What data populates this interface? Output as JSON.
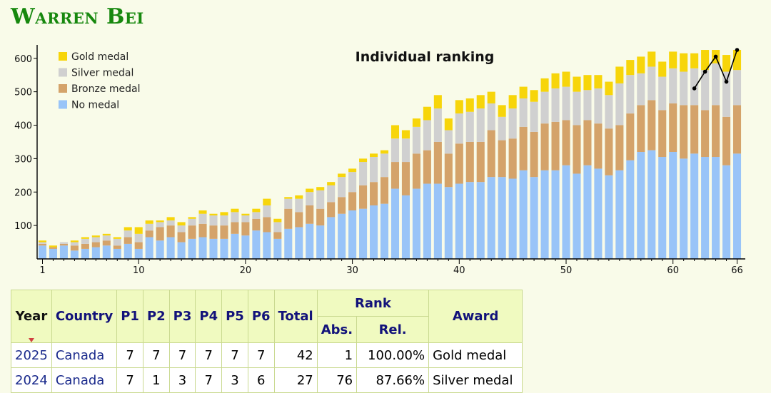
{
  "page": {
    "title": "Warren Bei"
  },
  "chart_data": {
    "type": "bar",
    "title": "Individual ranking",
    "stacked": true,
    "x_ticks": [
      1,
      10,
      20,
      30,
      40,
      50,
      60,
      66
    ],
    "y_ticks": [
      100,
      200,
      300,
      400,
      500,
      600
    ],
    "ylim": [
      0,
      640
    ],
    "xlim": [
      0.5,
      66.5
    ],
    "legend_position": "top-left",
    "grid": false,
    "categories": [
      1,
      2,
      3,
      4,
      5,
      6,
      7,
      8,
      9,
      10,
      11,
      12,
      13,
      14,
      15,
      16,
      17,
      18,
      19,
      20,
      21,
      22,
      23,
      24,
      25,
      26,
      27,
      28,
      29,
      30,
      31,
      32,
      33,
      34,
      35,
      36,
      37,
      38,
      39,
      40,
      41,
      42,
      43,
      44,
      45,
      46,
      47,
      48,
      49,
      50,
      51,
      52,
      53,
      54,
      55,
      56,
      57,
      58,
      59,
      60,
      61,
      62,
      63,
      64,
      65,
      66
    ],
    "series": [
      {
        "name": "No medal",
        "color": "#99c4f8",
        "values": [
          40,
          30,
          40,
          25,
          30,
          35,
          40,
          30,
          45,
          30,
          65,
          55,
          65,
          50,
          60,
          65,
          60,
          60,
          75,
          70,
          85,
          80,
          60,
          90,
          95,
          105,
          100,
          125,
          135,
          145,
          150,
          160,
          165,
          210,
          190,
          210,
          225,
          225,
          215,
          225,
          230,
          230,
          245,
          245,
          240,
          265,
          245,
          265,
          265,
          280,
          255,
          280,
          270,
          250,
          265,
          295,
          320,
          325,
          305,
          320,
          300,
          315,
          305,
          305,
          280,
          315
        ]
      },
      {
        "name": "Bronze medal",
        "color": "#d4a36a",
        "values": [
          5,
          5,
          5,
          15,
          15,
          15,
          15,
          10,
          20,
          20,
          20,
          40,
          35,
          30,
          40,
          40,
          40,
          40,
          35,
          40,
          35,
          45,
          20,
          60,
          45,
          55,
          50,
          45,
          50,
          55,
          70,
          70,
          80,
          80,
          100,
          105,
          100,
          125,
          100,
          120,
          120,
          120,
          140,
          110,
          120,
          130,
          135,
          140,
          145,
          135,
          145,
          135,
          135,
          140,
          135,
          140,
          140,
          150,
          140,
          145,
          160,
          145,
          140,
          155,
          145,
          145
        ]
      },
      {
        "name": "Silver medal",
        "color": "#d0d0d0",
        "values": [
          5,
          0,
          5,
          10,
          15,
          15,
          15,
          20,
          20,
          25,
          20,
          15,
          15,
          20,
          20,
          30,
          30,
          30,
          30,
          20,
          20,
          35,
          30,
          30,
          40,
          40,
          55,
          50,
          60,
          60,
          70,
          75,
          70,
          70,
          70,
          80,
          90,
          100,
          70,
          90,
          90,
          100,
          80,
          70,
          90,
          85,
          90,
          95,
          100,
          100,
          100,
          90,
          105,
          100,
          125,
          115,
          95,
          100,
          100,
          105,
          100,
          110,
          120,
          125,
          135,
          105
        ]
      },
      {
        "name": "Gold medal",
        "color": "#f7d50a",
        "values": [
          5,
          5,
          0,
          5,
          5,
          5,
          5,
          5,
          10,
          20,
          10,
          5,
          10,
          10,
          5,
          10,
          5,
          10,
          10,
          5,
          10,
          20,
          10,
          5,
          10,
          10,
          10,
          10,
          10,
          10,
          10,
          10,
          10,
          40,
          25,
          25,
          40,
          40,
          35,
          40,
          40,
          40,
          35,
          35,
          40,
          35,
          35,
          40,
          45,
          45,
          45,
          45,
          40,
          40,
          50,
          45,
          50,
          45,
          45,
          50,
          55,
          45,
          60,
          40,
          50,
          60
        ]
      }
    ],
    "rank_line": {
      "x": [
        62,
        63,
        64,
        65,
        66
      ],
      "y": [
        510,
        560,
        605,
        530,
        625
      ]
    }
  },
  "table": {
    "headers": {
      "year": "Year",
      "country": "Country",
      "p1": "P1",
      "p2": "P2",
      "p3": "P3",
      "p4": "P4",
      "p5": "P5",
      "p6": "P6",
      "total": "Total",
      "rank": "Rank",
      "abs": "Abs.",
      "rel": "Rel.",
      "award": "Award"
    },
    "rows": [
      {
        "year": "2025",
        "country": "Canada",
        "p1": "7",
        "p2": "7",
        "p3": "7",
        "p4": "7",
        "p5": "7",
        "p6": "7",
        "total": "42",
        "abs": "1",
        "rel": "100.00%",
        "award": "Gold medal"
      },
      {
        "year": "2024",
        "country": "Canada",
        "p1": "7",
        "p2": "1",
        "p3": "3",
        "p4": "7",
        "p5": "3",
        "p6": "6",
        "total": "27",
        "abs": "76",
        "rel": "87.66%",
        "award": "Silver medal"
      }
    ]
  }
}
